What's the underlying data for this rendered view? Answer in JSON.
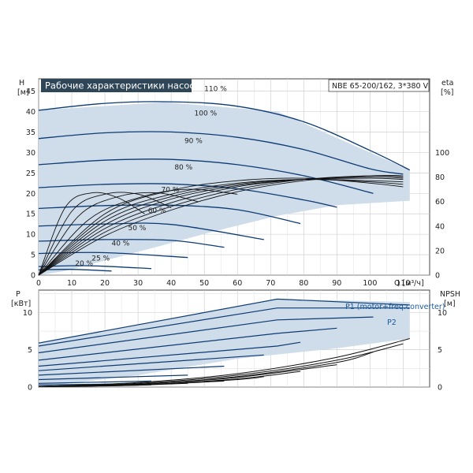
{
  "chart_data": [
    {
      "type": "line",
      "title": "Рабочие характеристики насоса",
      "pump_label": "NBE 65-200/162, 3*380 V",
      "xlabel": "Q [м³/ч]",
      "ylabel": [
        "H",
        "[м]"
      ],
      "ylabel_right": [
        "eta",
        "[%]"
      ],
      "xlim": [
        0,
        118
      ],
      "ylim": [
        0,
        48
      ],
      "ylim_right": [
        0,
        160
      ],
      "x_ticks": [
        0,
        10,
        20,
        30,
        40,
        50,
        60,
        70,
        80,
        90,
        100,
        110
      ],
      "x_tick_labels": [
        "0",
        "10",
        "20",
        "30",
        "40",
        "50",
        "60",
        "70",
        "80",
        "90",
        "100",
        "110"
      ],
      "y_ticks": [
        0,
        5,
        10,
        15,
        20,
        25,
        30,
        35,
        40,
        45
      ],
      "y_tick_labels": [
        "0",
        "5",
        "10",
        "15",
        "20",
        "25",
        "30",
        "35",
        "40",
        "45"
      ],
      "y_ticks_right": [
        0,
        20,
        40,
        60,
        80,
        100
      ],
      "y_tick_labels_right": [
        "0",
        "20",
        "40",
        "60",
        "80",
        "100"
      ],
      "grid": true,
      "operating_area": [
        [
          0,
          40.3
        ],
        [
          38,
          42.3
        ],
        [
          72,
          40
        ],
        [
          112,
          25.7
        ],
        [
          112,
          18.2
        ],
        [
          90,
          17.1
        ],
        [
          72,
          14.5
        ],
        [
          52,
          10.5
        ],
        [
          36,
          7
        ],
        [
          22,
          4
        ],
        [
          8,
          1
        ],
        [
          0,
          0
        ]
      ],
      "max_curve": [
        [
          0,
          40.3
        ],
        [
          10,
          41.3
        ],
        [
          20,
          42.0
        ],
        [
          30,
          42.3
        ],
        [
          38,
          42.3
        ],
        [
          50,
          41.9
        ],
        [
          60,
          41.3
        ],
        [
          72,
          40.0
        ],
        [
          85,
          35.5
        ],
        [
          100,
          30.5
        ],
        [
          112,
          25.7
        ]
      ],
      "series": [
        {
          "name": "110 %",
          "label_at": [
            50,
            45.0
          ],
          "x": [
            0,
            20,
            40,
            60,
            80,
            100,
            112
          ],
          "y": [
            40.3,
            42.0,
            42.4,
            41.3,
            37.5,
            30.5,
            25.7
          ]
        },
        {
          "name": "100 %",
          "label_at": [
            47,
            39.0
          ],
          "x": [
            0,
            20,
            40,
            60,
            80,
            100,
            110
          ],
          "y": [
            33.4,
            34.8,
            35.0,
            33.7,
            30.7,
            26.0,
            24.7
          ]
        },
        {
          "name": "90 %",
          "label_at": [
            44,
            32.3
          ],
          "x": [
            0,
            20,
            40,
            60,
            80,
            101
          ],
          "y": [
            27.0,
            28.1,
            28.3,
            27.0,
            24.3,
            20.0
          ]
        },
        {
          "name": "80 %",
          "label_at": [
            41,
            25.8
          ],
          "x": [
            0,
            20,
            40,
            60,
            80,
            90
          ],
          "y": [
            21.4,
            22.2,
            22.3,
            21.1,
            18.4,
            16.6
          ]
        },
        {
          "name": "70 %",
          "label_at": [
            37,
            20.3
          ],
          "x": [
            0,
            20,
            40,
            60,
            79
          ],
          "y": [
            16.3,
            17.0,
            17.1,
            16.0,
            12.6
          ]
        },
        {
          "name": "60 %",
          "label_at": [
            33,
            15.2
          ],
          "x": [
            0,
            20,
            40,
            68
          ],
          "y": [
            12.0,
            12.5,
            12.4,
            8.7
          ]
        },
        {
          "name": "50 %",
          "label_at": [
            27,
            11.0
          ],
          "x": [
            0,
            20,
            40,
            56
          ],
          "y": [
            8.3,
            8.7,
            8.5,
            6.8
          ]
        },
        {
          "name": "40 %",
          "label_at": [
            22,
            7.2
          ],
          "x": [
            0,
            20,
            45
          ],
          "y": [
            5.3,
            5.5,
            4.3
          ]
        },
        {
          "name": "25 %",
          "label_at": [
            16,
            3.6
          ],
          "x": [
            0,
            15,
            34
          ],
          "y": [
            2.1,
            2.3,
            1.6
          ]
        },
        {
          "name": "20 %",
          "label_at": [
            11,
            2.3
          ],
          "x": [
            0,
            10,
            22
          ],
          "y": [
            1.3,
            1.4,
            1.0
          ]
        }
      ],
      "efficiency_curves": [
        {
          "x": [
            0,
            20,
            40,
            60,
            80,
            100,
            110
          ],
          "y": [
            0,
            50,
            69,
            77,
            79,
            75,
            72
          ]
        },
        {
          "x": [
            0,
            20,
            40,
            60,
            80,
            100,
            110
          ],
          "y": [
            0,
            47,
            66,
            75,
            78,
            76,
            74
          ]
        },
        {
          "x": [
            0,
            20,
            40,
            60,
            80,
            100,
            110
          ],
          "y": [
            0,
            44,
            64,
            74,
            78,
            77,
            76
          ]
        },
        {
          "x": [
            0,
            20,
            40,
            60,
            80,
            100,
            110
          ],
          "y": [
            0,
            41,
            62,
            73,
            78,
            79,
            78
          ]
        },
        {
          "x": [
            0,
            20,
            40,
            60,
            80,
            100,
            110
          ],
          "y": [
            0,
            38,
            59,
            72,
            78,
            80,
            79
          ]
        },
        {
          "x": [
            0,
            20,
            40,
            60,
            80,
            100,
            110
          ],
          "y": [
            0,
            35,
            56,
            70,
            78,
            81,
            80
          ]
        },
        {
          "x": [
            0,
            20,
            40,
            60,
            80,
            100,
            110
          ],
          "y": [
            0,
            32,
            53,
            68,
            77,
            81,
            81
          ]
        },
        {
          "x": [
            0,
            15,
            30,
            45,
            60
          ],
          "y": [
            0,
            45,
            63,
            70,
            66
          ]
        },
        {
          "x": [
            0,
            12,
            24,
            36,
            48
          ],
          "y": [
            0,
            48,
            64,
            67,
            60
          ]
        },
        {
          "x": [
            0,
            10,
            20,
            30,
            40
          ],
          "y": [
            0,
            52,
            66,
            66,
            55
          ]
        },
        {
          "x": [
            0,
            8,
            16,
            24,
            32
          ],
          "y": [
            0,
            55,
            67,
            63,
            50
          ]
        }
      ]
    },
    {
      "type": "line",
      "ylabel": [
        "P",
        "[кВт]"
      ],
      "ylabel_right": [
        "NPSH",
        "[м]"
      ],
      "xlim": [
        0,
        118
      ],
      "ylim": [
        0,
        13
      ],
      "ylim_right": [
        0,
        13
      ],
      "x_ticks": [
        0,
        10,
        20,
        30,
        40,
        50,
        60,
        70,
        80,
        90,
        100,
        110
      ],
      "y_ticks": [
        0,
        5,
        10
      ],
      "y_tick_labels": [
        "0",
        "5",
        "10"
      ],
      "y_ticks_right": [
        0,
        5,
        10
      ],
      "y_tick_labels_right": [
        "0",
        "5",
        "10"
      ],
      "grid": true,
      "legend": [
        "P1 (motor+freq.converter)",
        "P2"
      ],
      "operating_area": [
        [
          0,
          6
        ],
        [
          72,
          11.8
        ],
        [
          112,
          11.4
        ],
        [
          112,
          6.5
        ],
        [
          90,
          5.2
        ],
        [
          60,
          3.8
        ],
        [
          30,
          1.6
        ],
        [
          0,
          0
        ]
      ],
      "power_curves": [
        {
          "x": [
            0,
            72,
            112
          ],
          "y": [
            5.9,
            11.8,
            11.0
          ]
        },
        {
          "x": [
            0,
            72,
            112
          ],
          "y": [
            5.5,
            10.6,
            10.6
          ]
        },
        {
          "x": [
            0,
            72,
            101
          ],
          "y": [
            4.6,
            9.0,
            9.4
          ]
        },
        {
          "x": [
            0,
            72,
            90
          ],
          "y": [
            3.6,
            7.2,
            7.9
          ]
        },
        {
          "x": [
            0,
            72,
            79
          ],
          "y": [
            2.8,
            5.5,
            6.0
          ]
        },
        {
          "x": [
            0,
            68
          ],
          "y": [
            2.2,
            4.3
          ]
        },
        {
          "x": [
            0,
            56
          ],
          "y": [
            1.6,
            2.8
          ]
        },
        {
          "x": [
            0,
            45
          ],
          "y": [
            1.0,
            1.6
          ]
        },
        {
          "x": [
            0,
            34
          ],
          "y": [
            0.5,
            0.8
          ]
        },
        {
          "x": [
            0,
            22
          ],
          "y": [
            0.3,
            0.4
          ]
        }
      ],
      "npsh_curves": [
        {
          "x": [
            0,
            30,
            60,
            90,
            112
          ],
          "y": [
            0.1,
            0.6,
            1.8,
            4.0,
            6.5
          ]
        },
        {
          "x": [
            0,
            30,
            60,
            90,
            110
          ],
          "y": [
            0.1,
            0.5,
            1.6,
            3.6,
            5.8
          ]
        },
        {
          "x": [
            0,
            30,
            60,
            90,
            101
          ],
          "y": [
            0.1,
            0.4,
            1.4,
            3.3,
            4.7
          ]
        },
        {
          "x": [
            0,
            30,
            60,
            90
          ],
          "y": [
            0.1,
            0.4,
            1.3,
            3.0
          ]
        },
        {
          "x": [
            0,
            30,
            60,
            79
          ],
          "y": [
            0.1,
            0.3,
            1.1,
            2.1
          ]
        },
        {
          "x": [
            0,
            30,
            60,
            68
          ],
          "y": [
            0.1,
            0.3,
            1.0,
            1.4
          ]
        },
        {
          "x": [
            0,
            30,
            56
          ],
          "y": [
            0.1,
            0.3,
            0.8
          ]
        },
        {
          "x": [
            0,
            25,
            45
          ],
          "y": [
            0.1,
            0.2,
            0.5
          ]
        },
        {
          "x": [
            0,
            20,
            34
          ],
          "y": [
            0.05,
            0.15,
            0.3
          ]
        },
        {
          "x": [
            0,
            12,
            22
          ],
          "y": [
            0.05,
            0.1,
            0.2
          ]
        }
      ]
    }
  ],
  "colors": {
    "curve": "#0d3b73",
    "area": "#cfdcea",
    "area_light": "#e3edf6",
    "title_bg": "#2f4558",
    "grid": "#c8c8c8",
    "eff": "#111111"
  }
}
